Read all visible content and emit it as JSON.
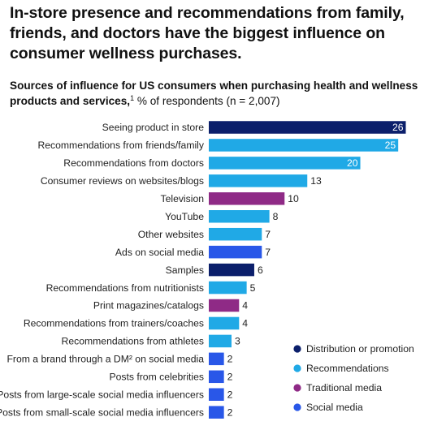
{
  "title": "In-store presence and recommendations from family, friends, and doctors have the biggest influence on consumer wellness purchases.",
  "subtitle": {
    "bold": "Sources of influence for US consumers when purchasing health and wellness products and services,",
    "footnote": "1",
    "rest": " % of respondents (n = 2,007)"
  },
  "chart_data": {
    "type": "bar",
    "orientation": "horizontal",
    "title": "",
    "xlabel": "",
    "ylabel": "",
    "unit": "% of respondents",
    "xlim": [
      0,
      26
    ],
    "grid": false,
    "legend_position": "bottom-right",
    "colors": {
      "Distribution or promotion": "#0b1f6b",
      "Recommendations": "#20a9e6",
      "Traditional media": "#8f2a86",
      "Social media": "#2957e8"
    },
    "categories": [
      "Seeing product in store",
      "Recommendations from friends/family",
      "Recommendations from doctors",
      "Consumer reviews on websites/blogs",
      "Television",
      "YouTube",
      "Other websites",
      "Ads on social media",
      "Samples",
      "Recommendations from nutritionists",
      "Print magazines/catalogs",
      "Recommendations from trainers/coaches",
      "Recommendations from athletes",
      "From a brand through a DM² on social media",
      "Posts from celebrities",
      "Posts from large-scale social media influencers",
      "Posts from small-scale social media influencers"
    ],
    "values": [
      26,
      25,
      20,
      13,
      10,
      8,
      7,
      7,
      6,
      5,
      4,
      4,
      3,
      2,
      2,
      2,
      2
    ],
    "groups": [
      "Distribution or promotion",
      "Recommendations",
      "Recommendations",
      "Recommendations",
      "Traditional media",
      "Recommendations",
      "Recommendations",
      "Social media",
      "Distribution or promotion",
      "Recommendations",
      "Traditional media",
      "Recommendations",
      "Recommendations",
      "Social media",
      "Social media",
      "Social media",
      "Social media"
    ],
    "legend": [
      "Distribution or promotion",
      "Recommendations",
      "Traditional media",
      "Social media"
    ]
  }
}
